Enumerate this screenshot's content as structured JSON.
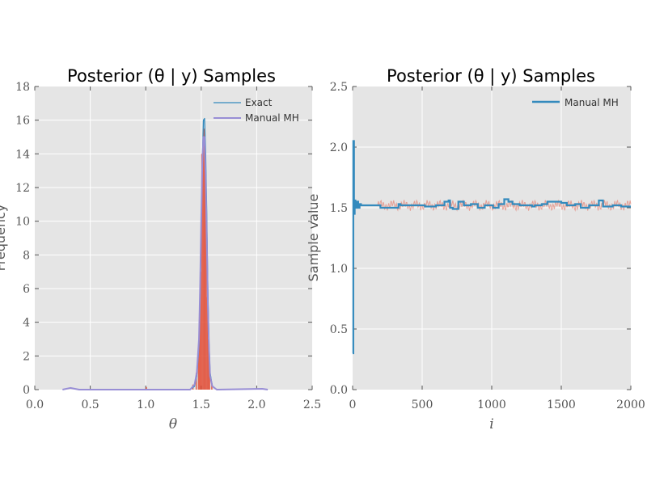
{
  "chart_data": [
    {
      "type": "line",
      "title": "Posterior (θ | y) Samples",
      "xlabel": "θ",
      "ylabel": "Frequency",
      "xlim": [
        0.0,
        2.5
      ],
      "ylim": [
        0,
        18
      ],
      "x_ticks": [
        "0.0",
        "0.5",
        "1.0",
        "1.5",
        "2.0",
        "2.5"
      ],
      "y_ticks": [
        "0",
        "2",
        "4",
        "6",
        "8",
        "10",
        "12",
        "14",
        "16",
        "18"
      ],
      "grid": true,
      "legend_position": "top-right",
      "colors": {
        "exact": "#348abd",
        "manual": "#988ed5",
        "histogram": "#e24a33"
      },
      "series": [
        {
          "name": "Exact",
          "x": [
            1.4,
            1.44,
            1.46,
            1.48,
            1.49,
            1.5,
            1.51,
            1.52,
            1.53,
            1.54,
            1.55,
            1.56,
            1.57,
            1.58,
            1.6,
            1.64
          ],
          "y": [
            0,
            0.2,
            0.8,
            2.6,
            5.5,
            9.5,
            13.5,
            16.0,
            16.1,
            14.0,
            10.5,
            6.0,
            2.8,
            1.0,
            0.2,
            0
          ]
        },
        {
          "name": "Manual MH",
          "x": [
            0.25,
            0.32,
            0.4,
            1.0,
            1.4,
            1.44,
            1.46,
            1.48,
            1.49,
            1.5,
            1.51,
            1.52,
            1.53,
            1.54,
            1.55,
            1.56,
            1.57,
            1.58,
            1.6,
            1.64,
            2.05,
            2.1
          ],
          "y": [
            0,
            0.1,
            0,
            0,
            0,
            0.3,
            1.0,
            3.0,
            6.0,
            10.0,
            13.5,
            15.0,
            15.0,
            12.5,
            9.0,
            5.0,
            2.5,
            0.8,
            0.2,
            0,
            0.05,
            0
          ]
        }
      ],
      "histogram": {
        "bin_width": 0.01,
        "bins": [
          [
            1.0,
            0.15
          ],
          [
            1.42,
            0.3
          ],
          [
            1.45,
            1.0
          ],
          [
            1.47,
            2.5
          ],
          [
            1.48,
            4.0
          ],
          [
            1.49,
            7.0
          ],
          [
            1.5,
            14.0
          ],
          [
            1.51,
            14.2
          ],
          [
            1.52,
            15.5
          ],
          [
            1.53,
            13.0
          ],
          [
            1.54,
            10.0
          ],
          [
            1.55,
            5.5
          ],
          [
            1.56,
            3.0
          ],
          [
            1.57,
            1.2
          ],
          [
            1.59,
            0.4
          ]
        ]
      }
    },
    {
      "type": "line",
      "title": "Posterior (θ | y) Samples",
      "xlabel": "i",
      "ylabel": "Sample value",
      "xlim": [
        0,
        2000
      ],
      "ylim": [
        0.0,
        2.5
      ],
      "x_ticks": [
        "0",
        "500",
        "1000",
        "1500",
        "2000"
      ],
      "y_ticks": [
        "0.0",
        "0.5",
        "1.0",
        "1.5",
        "2.0",
        "2.5"
      ],
      "grid": true,
      "legend_position": "top-right",
      "colors": {
        "manual": "#348abd",
        "trace": "#e24a33"
      },
      "series": [
        {
          "name": "Manual MH",
          "step": true,
          "x": [
            0,
            5,
            10,
            15,
            20,
            30,
            40,
            50,
            60,
            100,
            150,
            200,
            330,
            345,
            490,
            520,
            600,
            660,
            690,
            700,
            720,
            760,
            800,
            850,
            900,
            950,
            1010,
            1050,
            1090,
            1120,
            1150,
            1200,
            1290,
            1310,
            1360,
            1400,
            1500,
            1540,
            1600,
            1640,
            1700,
            1770,
            1800,
            1870,
            1930,
            2000
          ],
          "y": [
            0.3,
            2.05,
            1.45,
            1.56,
            1.5,
            1.55,
            1.5,
            1.53,
            1.52,
            1.52,
            1.52,
            1.5,
            1.53,
            1.52,
            1.52,
            1.51,
            1.52,
            1.55,
            1.56,
            1.5,
            1.49,
            1.55,
            1.52,
            1.53,
            1.5,
            1.52,
            1.5,
            1.53,
            1.57,
            1.55,
            1.53,
            1.52,
            1.51,
            1.52,
            1.53,
            1.55,
            1.54,
            1.52,
            1.53,
            1.5,
            1.52,
            1.56,
            1.51,
            1.52,
            1.51,
            1.51
          ]
        }
      ],
      "trace_band": {
        "center": 1.52,
        "amplitude": 0.045,
        "from": 180,
        "to": 2000
      }
    }
  ]
}
